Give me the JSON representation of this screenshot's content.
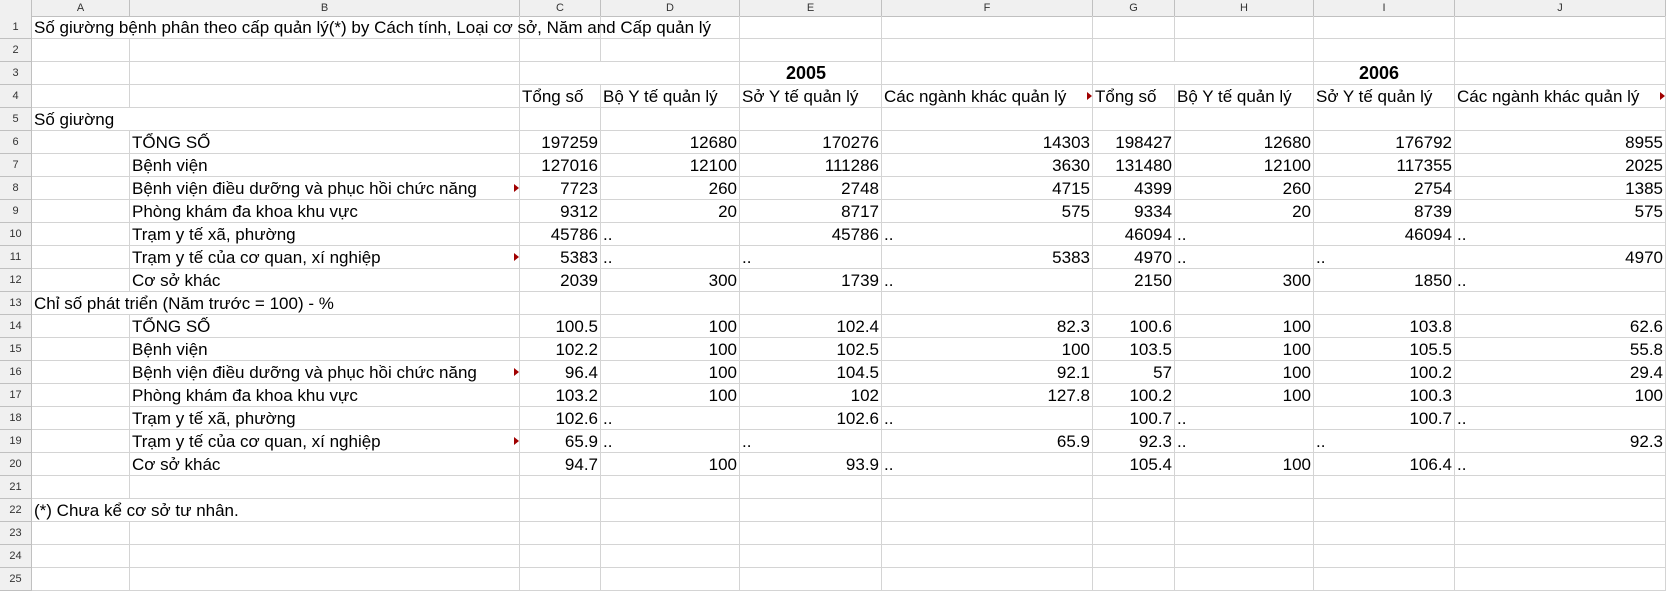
{
  "columns": [
    "A",
    "B",
    "C",
    "D",
    "E",
    "F",
    "G",
    "H",
    "I",
    "J"
  ],
  "rows": [
    {
      "n": "1",
      "cells": {
        "A": "Số giường bệnh phân theo cấp quản lý(*) by Cách tính, Loại cơ sở, Năm and Cấp quản lý"
      }
    },
    {
      "n": "2",
      "cells": {}
    },
    {
      "n": "3",
      "cells": {
        "C": "2005",
        "G": "2006"
      }
    },
    {
      "n": "4",
      "cells": {
        "C": "Tổng số",
        "D": "Bộ Y tế quản lý",
        "E": "Sở Y tế quản lý",
        "F": "Các ngành khác quản lý",
        "G": "Tổng số",
        "H": "Bộ Y tế quản lý",
        "I": "Sở Y tế quản lý",
        "J": "Các ngành khác quản lý"
      }
    },
    {
      "n": "5",
      "cells": {
        "A": "Số giường"
      }
    },
    {
      "n": "6",
      "cells": {
        "B": "TỔNG SỐ",
        "C": "197259",
        "D": "12680",
        "E": "170276",
        "F": "14303",
        "G": "198427",
        "H": "12680",
        "I": "176792",
        "J": "8955"
      }
    },
    {
      "n": "7",
      "cells": {
        "B": "Bệnh viện",
        "C": "127016",
        "D": "12100",
        "E": "111286",
        "F": "3630",
        "G": "131480",
        "H": "12100",
        "I": "117355",
        "J": "2025"
      }
    },
    {
      "n": "8",
      "cells": {
        "B": "Bệnh viện điều dưỡng và phục hồi chức năng",
        "C": "7723",
        "D": "260",
        "E": "2748",
        "F": "4715",
        "G": "4399",
        "H": "260",
        "I": "2754",
        "J": "1385"
      }
    },
    {
      "n": "9",
      "cells": {
        "B": "Phòng khám đa khoa khu vực",
        "C": "9312",
        "D": "20",
        "E": "8717",
        "F": "575",
        "G": "9334",
        "H": "20",
        "I": "8739",
        "J": "575"
      }
    },
    {
      "n": "10",
      "cells": {
        "B": "Trạm y tế xã, phường",
        "C": "45786",
        "D": "..",
        "E": "45786",
        "F": "..",
        "G": "46094",
        "H": "..",
        "I": "46094",
        "J": ".."
      }
    },
    {
      "n": "11",
      "cells": {
        "B": "Trạm y tế của cơ quan, xí nghiệp",
        "C": "5383",
        "D": "..",
        "E": "..",
        "F": "5383",
        "G": "4970",
        "H": "..",
        "I": "..",
        "J": "4970"
      }
    },
    {
      "n": "12",
      "cells": {
        "B": "Cơ sở khác",
        "C": "2039",
        "D": "300",
        "E": "1739",
        "F": "..",
        "G": "2150",
        "H": "300",
        "I": "1850",
        "J": ".."
      }
    },
    {
      "n": "13",
      "cells": {
        "A": "Chỉ số phát triển (Năm trước = 100) - %"
      }
    },
    {
      "n": "14",
      "cells": {
        "B": "TỔNG SỐ",
        "C": "100.5",
        "D": "100",
        "E": "102.4",
        "F": "82.3",
        "G": "100.6",
        "H": "100",
        "I": "103.8",
        "J": "62.6"
      }
    },
    {
      "n": "15",
      "cells": {
        "B": "Bệnh viện",
        "C": "102.2",
        "D": "100",
        "E": "102.5",
        "F": "100",
        "G": "103.5",
        "H": "100",
        "I": "105.5",
        "J": "55.8"
      }
    },
    {
      "n": "16",
      "cells": {
        "B": "Bệnh viện điều dưỡng và phục hồi chức năng",
        "C": "96.4",
        "D": "100",
        "E": "104.5",
        "F": "92.1",
        "G": "57",
        "H": "100",
        "I": "100.2",
        "J": "29.4"
      }
    },
    {
      "n": "17",
      "cells": {
        "B": "Phòng khám đa khoa khu vực",
        "C": "103.2",
        "D": "100",
        "E": "102",
        "F": "127.8",
        "G": "100.2",
        "H": "100",
        "I": "100.3",
        "J": "100"
      }
    },
    {
      "n": "18",
      "cells": {
        "B": "Trạm y tế xã, phường",
        "C": "102.6",
        "D": "..",
        "E": "102.6",
        "F": "..",
        "G": "100.7",
        "H": "..",
        "I": "100.7",
        "J": ".."
      }
    },
    {
      "n": "19",
      "cells": {
        "B": "Trạm y tế của cơ quan, xí nghiệp",
        "C": "65.9",
        "D": "..",
        "E": "..",
        "F": "65.9",
        "G": "92.3",
        "H": "..",
        "I": "..",
        "J": "92.3"
      }
    },
    {
      "n": "20",
      "cells": {
        "B": "Cơ sở khác",
        "C": "94.7",
        "D": "100",
        "E": "93.9",
        "F": "..",
        "G": "105.4",
        "H": "100",
        "I": "106.4",
        "J": ".."
      }
    },
    {
      "n": "21",
      "cells": {}
    },
    {
      "n": "22",
      "cells": {
        "A": "(*) Chưa kể cơ sở tư nhân."
      }
    },
    {
      "n": "23",
      "cells": {}
    },
    {
      "n": "24",
      "cells": {}
    },
    {
      "n": "25",
      "cells": {}
    }
  ]
}
